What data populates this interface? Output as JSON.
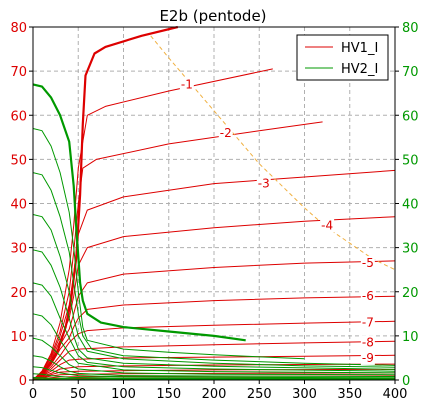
{
  "chart_data": {
    "type": "line",
    "title": "E2b (pentode)",
    "xlabel": "",
    "ylabel": "",
    "xlim": [
      0,
      400
    ],
    "ylim": [
      0,
      80
    ],
    "xticks": [
      0,
      50,
      100,
      150,
      200,
      250,
      300,
      350,
      400
    ],
    "yticks": [
      0,
      10,
      20,
      30,
      40,
      50,
      60,
      70,
      80
    ],
    "grid": true,
    "legend_position": "top-right",
    "colors": {
      "HV1_I": "#dd0000",
      "HV2_I": "#009900",
      "load_line": "#f0b040",
      "right_axis": "#009900"
    },
    "legend": [
      {
        "name": "HV1_I",
        "color": "#dd0000"
      },
      {
        "name": "HV2_I",
        "color": "#009900"
      }
    ],
    "curve_labels": [
      {
        "text": "-1",
        "x": 170,
        "y": 67
      },
      {
        "text": "-2",
        "x": 213,
        "y": 56
      },
      {
        "text": "-3",
        "x": 255,
        "y": 44.5
      },
      {
        "text": "-4",
        "x": 325,
        "y": 35
      },
      {
        "text": "-5",
        "x": 370,
        "y": 26.5
      },
      {
        "text": "-6",
        "x": 370,
        "y": 19
      },
      {
        "text": "-7",
        "x": 370,
        "y": 13
      },
      {
        "text": "-8",
        "x": 370,
        "y": 8.5
      },
      {
        "text": "-9",
        "x": 370,
        "y": 5
      }
    ],
    "series": [
      {
        "name": "HV1_I",
        "values": [
          [
            0,
            0
          ],
          [
            10,
            2
          ],
          [
            20,
            6
          ],
          [
            30,
            13
          ],
          [
            40,
            25
          ],
          [
            45,
            35
          ],
          [
            50,
            48
          ],
          [
            60,
            60
          ],
          [
            80,
            62
          ],
          [
            150,
            65.5
          ],
          [
            265,
            70.5
          ]
        ]
      },
      {
        "values": [
          [
            0,
            0
          ],
          [
            10,
            2
          ],
          [
            20,
            5.5
          ],
          [
            30,
            11
          ],
          [
            40,
            20
          ],
          [
            45,
            29
          ],
          [
            50,
            40
          ],
          [
            55,
            48
          ],
          [
            70,
            50
          ],
          [
            150,
            53.5
          ],
          [
            250,
            56.5
          ],
          [
            320,
            58.5
          ]
        ]
      },
      {
        "values": [
          [
            0,
            0
          ],
          [
            10,
            1.8
          ],
          [
            20,
            5
          ],
          [
            30,
            10
          ],
          [
            40,
            17
          ],
          [
            45,
            24
          ],
          [
            50,
            33
          ],
          [
            60,
            38.5
          ],
          [
            100,
            41.5
          ],
          [
            200,
            44.5
          ],
          [
            300,
            46
          ],
          [
            400,
            47.5
          ]
        ]
      },
      {
        "values": [
          [
            0,
            0
          ],
          [
            10,
            1.6
          ],
          [
            20,
            4.5
          ],
          [
            30,
            9
          ],
          [
            40,
            14
          ],
          [
            45,
            19
          ],
          [
            50,
            26
          ],
          [
            60,
            30
          ],
          [
            100,
            32.5
          ],
          [
            200,
            34.5
          ],
          [
            300,
            36
          ],
          [
            400,
            37
          ]
        ]
      },
      {
        "values": [
          [
            0,
            0
          ],
          [
            10,
            1.4
          ],
          [
            20,
            4
          ],
          [
            30,
            8
          ],
          [
            40,
            11.5
          ],
          [
            45,
            15
          ],
          [
            50,
            19
          ],
          [
            60,
            22
          ],
          [
            100,
            24
          ],
          [
            200,
            25.5
          ],
          [
            300,
            26.5
          ],
          [
            400,
            27
          ]
        ]
      },
      {
        "values": [
          [
            0,
            0
          ],
          [
            10,
            1.2
          ],
          [
            20,
            3.5
          ],
          [
            30,
            7
          ],
          [
            40,
            9.5
          ],
          [
            45,
            12
          ],
          [
            50,
            14
          ],
          [
            60,
            16
          ],
          [
            100,
            17
          ],
          [
            200,
            18
          ],
          [
            300,
            18.6
          ],
          [
            400,
            19
          ]
        ]
      },
      {
        "values": [
          [
            0,
            0
          ],
          [
            10,
            1.1
          ],
          [
            20,
            3
          ],
          [
            30,
            5.5
          ],
          [
            40,
            8.5
          ],
          [
            50,
            10.5
          ],
          [
            60,
            11.2
          ],
          [
            100,
            11.8
          ],
          [
            200,
            12.4
          ],
          [
            300,
            12.9
          ],
          [
            400,
            13.3
          ]
        ]
      },
      {
        "values": [
          [
            0,
            0
          ],
          [
            10,
            1
          ],
          [
            20,
            2.5
          ],
          [
            30,
            4.5
          ],
          [
            40,
            6.5
          ],
          [
            50,
            7
          ],
          [
            100,
            7.5
          ],
          [
            200,
            8
          ],
          [
            300,
            8.4
          ],
          [
            400,
            8.8
          ]
        ]
      },
      {
        "values": [
          [
            0,
            0
          ],
          [
            10,
            0.9
          ],
          [
            20,
            2
          ],
          [
            30,
            3.5
          ],
          [
            40,
            4.5
          ],
          [
            50,
            4.7
          ],
          [
            100,
            5
          ],
          [
            200,
            5.2
          ],
          [
            300,
            5.4
          ],
          [
            400,
            5.6
          ]
        ]
      },
      {
        "values": [
          [
            0,
            0
          ],
          [
            10,
            0.8
          ],
          [
            20,
            1.5
          ],
          [
            30,
            2.5
          ],
          [
            50,
            3
          ],
          [
            100,
            3.2
          ],
          [
            200,
            3.4
          ],
          [
            400,
            3.6
          ]
        ]
      },
      {
        "values": [
          [
            0,
            0
          ],
          [
            10,
            0.6
          ],
          [
            20,
            1.2
          ],
          [
            30,
            1.8
          ],
          [
            50,
            2
          ],
          [
            100,
            2.1
          ],
          [
            200,
            2.3
          ],
          [
            400,
            2.4
          ]
        ]
      },
      {
        "values": [
          [
            0,
            0
          ],
          [
            10,
            0.5
          ],
          [
            20,
            0.9
          ],
          [
            30,
            1.2
          ],
          [
            50,
            1.3
          ],
          [
            100,
            1.4
          ],
          [
            200,
            1.5
          ],
          [
            400,
            1.6
          ]
        ]
      },
      {
        "values": [
          [
            0,
            0
          ],
          [
            10,
            0.3
          ],
          [
            20,
            0.5
          ],
          [
            30,
            0.7
          ],
          [
            50,
            0.75
          ],
          [
            100,
            0.8
          ],
          [
            200,
            0.85
          ],
          [
            400,
            0.9
          ]
        ]
      },
      {
        "values": [
          [
            0,
            0
          ],
          [
            10,
            0.2
          ],
          [
            20,
            0.3
          ],
          [
            50,
            0.35
          ],
          [
            200,
            0.4
          ],
          [
            400,
            0.45
          ]
        ]
      },
      {
        "values": [
          [
            0,
            0
          ],
          [
            10,
            1.5
          ],
          [
            20,
            4
          ],
          [
            28,
            7
          ],
          [
            36,
            12
          ],
          [
            42,
            18
          ],
          [
            48,
            28
          ],
          [
            52,
            42
          ],
          [
            55,
            58
          ],
          [
            58,
            69
          ],
          [
            68,
            74
          ],
          [
            80,
            75.5
          ],
          [
            120,
            78
          ],
          [
            160,
            80
          ]
        ]
      },
      {
        "name": "HV2_I",
        "values": [
          [
            0,
            67
          ],
          [
            10,
            66.5
          ],
          [
            20,
            64
          ],
          [
            30,
            60
          ],
          [
            40,
            54
          ],
          [
            45,
            44
          ],
          [
            48,
            34
          ],
          [
            50,
            28
          ],
          [
            52,
            22
          ],
          [
            55,
            18
          ],
          [
            60,
            15
          ],
          [
            75,
            13
          ],
          [
            100,
            12
          ],
          [
            150,
            11
          ],
          [
            200,
            10
          ],
          [
            235,
            9
          ]
        ]
      },
      {
        "values": [
          [
            0,
            57
          ],
          [
            10,
            56.5
          ],
          [
            20,
            53
          ],
          [
            30,
            47
          ],
          [
            40,
            38
          ],
          [
            45,
            30
          ],
          [
            50,
            20
          ],
          [
            55,
            12
          ],
          [
            60,
            9
          ],
          [
            100,
            7
          ],
          [
            150,
            6.3
          ],
          [
            200,
            5.7
          ],
          [
            300,
            4.8
          ]
        ]
      },
      {
        "values": [
          [
            0,
            47
          ],
          [
            10,
            46.5
          ],
          [
            20,
            43
          ],
          [
            30,
            37
          ],
          [
            40,
            29
          ],
          [
            45,
            22
          ],
          [
            50,
            15
          ],
          [
            55,
            10
          ],
          [
            65,
            7
          ],
          [
            100,
            5.5
          ],
          [
            200,
            4.5
          ],
          [
            300,
            3.8
          ],
          [
            400,
            3.3
          ]
        ]
      },
      {
        "values": [
          [
            0,
            37.5
          ],
          [
            10,
            37
          ],
          [
            20,
            34
          ],
          [
            30,
            28
          ],
          [
            40,
            20
          ],
          [
            45,
            14
          ],
          [
            50,
            10
          ],
          [
            60,
            6.5
          ],
          [
            100,
            4.8
          ],
          [
            200,
            3.8
          ],
          [
            300,
            3.2
          ],
          [
            400,
            2.9
          ]
        ]
      },
      {
        "values": [
          [
            0,
            29.5
          ],
          [
            10,
            29
          ],
          [
            20,
            26
          ],
          [
            30,
            21
          ],
          [
            40,
            14
          ],
          [
            45,
            10
          ],
          [
            50,
            7
          ],
          [
            60,
            5
          ],
          [
            100,
            3.8
          ],
          [
            200,
            3.1
          ],
          [
            400,
            2.4
          ]
        ]
      },
      {
        "values": [
          [
            0,
            22
          ],
          [
            10,
            21.5
          ],
          [
            20,
            19
          ],
          [
            30,
            14
          ],
          [
            40,
            9.5
          ],
          [
            50,
            5.5
          ],
          [
            60,
            4
          ],
          [
            100,
            3
          ],
          [
            200,
            2.5
          ],
          [
            400,
            2
          ]
        ]
      },
      {
        "values": [
          [
            0,
            15
          ],
          [
            10,
            14.5
          ],
          [
            20,
            12.5
          ],
          [
            30,
            9
          ],
          [
            40,
            6
          ],
          [
            50,
            3.8
          ],
          [
            100,
            2.3
          ],
          [
            200,
            1.9
          ],
          [
            400,
            1.6
          ]
        ]
      },
      {
        "values": [
          [
            0,
            9.5
          ],
          [
            10,
            9
          ],
          [
            20,
            7.5
          ],
          [
            30,
            5.5
          ],
          [
            40,
            3.5
          ],
          [
            50,
            2.5
          ],
          [
            100,
            1.6
          ],
          [
            200,
            1.3
          ],
          [
            400,
            1.2
          ]
        ]
      },
      {
        "values": [
          [
            0,
            5.5
          ],
          [
            10,
            5.2
          ],
          [
            20,
            4.3
          ],
          [
            30,
            3
          ],
          [
            40,
            2
          ],
          [
            50,
            1.5
          ],
          [
            100,
            1
          ],
          [
            200,
            0.9
          ],
          [
            400,
            0.8
          ]
        ]
      },
      {
        "values": [
          [
            0,
            3
          ],
          [
            10,
            2.8
          ],
          [
            20,
            2.2
          ],
          [
            30,
            1.6
          ],
          [
            50,
            1
          ],
          [
            100,
            0.7
          ],
          [
            400,
            0.5
          ]
        ]
      },
      {
        "values": [
          [
            0,
            1.4
          ],
          [
            10,
            1.3
          ],
          [
            20,
            1
          ],
          [
            40,
            0.6
          ],
          [
            100,
            0.4
          ],
          [
            400,
            0.3
          ]
        ]
      },
      {
        "values": [
          [
            0,
            0.6
          ],
          [
            20,
            0.4
          ],
          [
            50,
            0.25
          ],
          [
            400,
            0.15
          ]
        ]
      },
      {
        "values": [
          [
            0,
            0.3
          ],
          [
            30,
            0.1
          ],
          [
            400,
            0.05
          ]
        ]
      },
      {
        "values": [
          [
            130,
            78
          ],
          [
            150,
            73
          ],
          [
            175,
            67
          ],
          [
            200,
            61
          ],
          [
            225,
            55
          ],
          [
            250,
            49
          ],
          [
            275,
            44
          ],
          [
            300,
            39
          ],
          [
            325,
            34.5
          ],
          [
            350,
            31
          ],
          [
            375,
            27.5
          ],
          [
            400,
            25
          ]
        ]
      }
    ]
  }
}
